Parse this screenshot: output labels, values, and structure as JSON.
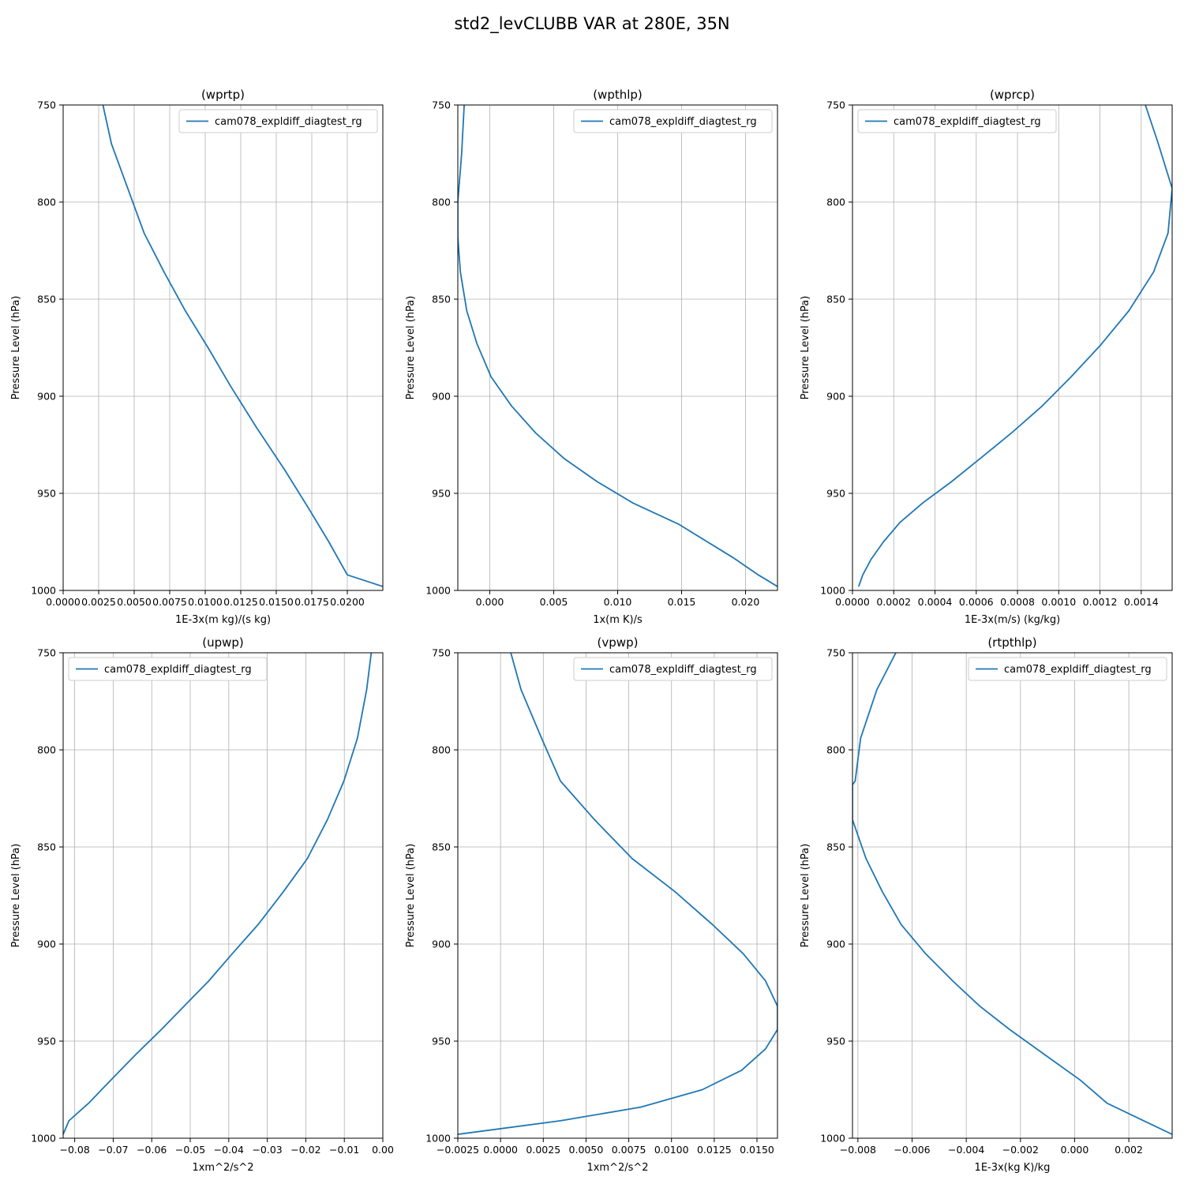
{
  "figure": {
    "title": "std2_levCLUBB VAR at 280E, 35N",
    "series_color": "#1f77b4"
  },
  "chart_data": [
    {
      "type": "line",
      "title": "(wprtp)",
      "xlabel": "1E-3x(m kg)/(s kg)",
      "ylabel": "Pressure Level (hPa)",
      "xlim": [
        0.0,
        0.0225
      ],
      "ylim": [
        1000,
        750
      ],
      "y_inverted": true,
      "grid": true,
      "legend_position": "upper-right",
      "xticks": [
        "0.0000",
        "0.0025",
        "0.0050",
        "0.0075",
        "0.0100",
        "0.0125",
        "0.0150",
        "0.0175",
        "0.0200"
      ],
      "xtick_values": [
        0.0,
        0.0025,
        0.005,
        0.0075,
        0.01,
        0.0125,
        0.015,
        0.0175,
        0.02
      ],
      "yticks": [
        "750",
        "800",
        "850",
        "900",
        "950",
        "1000"
      ],
      "ytick_values": [
        750,
        800,
        850,
        900,
        950,
        1000
      ],
      "series": [
        {
          "name": "cam078_expldiff_diagtest_rg",
          "x": [
            0.0028,
            0.0034,
            0.0046,
            0.0057,
            0.0071,
            0.0086,
            0.0102,
            0.0118,
            0.0136,
            0.0156,
            0.0173,
            0.0187,
            0.02,
            0.0225
          ],
          "y": [
            750,
            770,
            794,
            816,
            836,
            856,
            875,
            895,
            916,
            938,
            958,
            975,
            992,
            998
          ]
        }
      ]
    },
    {
      "type": "line",
      "title": "(wpthlp)",
      "xlabel": "1x(m K)/s",
      "ylabel": "Pressure Level (hPa)",
      "xlim": [
        -0.0025,
        0.0225
      ],
      "ylim": [
        1000,
        750
      ],
      "y_inverted": true,
      "grid": true,
      "legend_position": "upper-right",
      "xticks": [
        "0.000",
        "0.005",
        "0.010",
        "0.015",
        "0.020"
      ],
      "xtick_values": [
        0.0,
        0.005,
        0.01,
        0.015,
        0.02
      ],
      "yticks": [
        "750",
        "800",
        "850",
        "900",
        "950",
        "1000"
      ],
      "ytick_values": [
        750,
        800,
        850,
        900,
        950,
        1000
      ],
      "series": [
        {
          "name": "cam078_expldiff_diagtest_rg",
          "x": [
            -0.002,
            -0.0022,
            -0.0025,
            -0.0025,
            -0.0023,
            -0.0018,
            -0.001,
            0.0001,
            0.0017,
            0.0036,
            0.0058,
            0.0084,
            0.0112,
            0.0148,
            0.019,
            0.021,
            0.0225
          ],
          "y": [
            750,
            775,
            800,
            818,
            836,
            856,
            873,
            890,
            905,
            919,
            932,
            944,
            955,
            966,
            983,
            992,
            998
          ]
        }
      ]
    },
    {
      "type": "line",
      "title": "(wprcp)",
      "xlabel": "1E-3x(m/s) (kg/kg)",
      "ylabel": "Pressure Level (hPa)",
      "xlim": [
        0.0,
        0.00155
      ],
      "ylim": [
        1000,
        750
      ],
      "y_inverted": true,
      "grid": true,
      "legend_position": "upper-left",
      "xticks": [
        "0.0000",
        "0.0002",
        "0.0004",
        "0.0006",
        "0.0008",
        "0.0010",
        "0.0012",
        "0.0014"
      ],
      "xtick_values": [
        0.0,
        0.0002,
        0.0004,
        0.0006,
        0.0008,
        0.001,
        0.0012,
        0.0014
      ],
      "yticks": [
        "750",
        "800",
        "850",
        "900",
        "950",
        "1000"
      ],
      "ytick_values": [
        750,
        800,
        850,
        900,
        950,
        1000
      ],
      "series": [
        {
          "name": "cam078_expldiff_diagtest_rg",
          "x": [
            0.00142,
            0.00148,
            0.00155,
            0.00153,
            0.00146,
            0.00134,
            0.0012,
            0.00106,
            0.00092,
            0.00077,
            0.00062,
            0.00048,
            0.00034,
            0.00023,
            0.00015,
            9e-05,
            5e-05,
            3e-05
          ],
          "y": [
            750,
            769,
            793,
            816,
            836,
            856,
            874,
            890,
            905,
            919,
            932,
            944,
            955,
            965,
            975,
            984,
            992,
            998
          ]
        }
      ]
    },
    {
      "type": "line",
      "title": "(upwp)",
      "xlabel": "1xm^2/s^2",
      "ylabel": "Pressure Level (hPa)",
      "xlim": [
        -0.083,
        0.0
      ],
      "ylim": [
        1000,
        750
      ],
      "y_inverted": true,
      "grid": true,
      "legend_position": "upper-left",
      "xticks": [
        "−0.08",
        "−0.07",
        "−0.06",
        "−0.05",
        "−0.04",
        "−0.03",
        "−0.02",
        "−0.01",
        "0.00"
      ],
      "xtick_values": [
        -0.08,
        -0.07,
        -0.06,
        -0.05,
        -0.04,
        -0.03,
        -0.02,
        -0.01,
        0.0
      ],
      "yticks": [
        "750",
        "800",
        "850",
        "900",
        "950",
        "1000"
      ],
      "ytick_values": [
        750,
        800,
        850,
        900,
        950,
        1000
      ],
      "series": [
        {
          "name": "cam078_expldiff_diagtest_rg",
          "x": [
            -0.003,
            -0.0042,
            -0.0066,
            -0.0101,
            -0.0144,
            -0.0196,
            -0.0258,
            -0.0324,
            -0.0391,
            -0.0452,
            -0.0516,
            -0.058,
            -0.0642,
            -0.0701,
            -0.0764,
            -0.0815,
            -0.083
          ],
          "y": [
            750,
            769,
            794,
            816,
            836,
            856,
            873,
            890,
            905,
            919,
            932,
            945,
            957,
            969,
            982,
            991,
            998
          ]
        }
      ]
    },
    {
      "type": "line",
      "title": "(vpwp)",
      "xlabel": "1xm^2/s^2",
      "ylabel": "Pressure Level (hPa)",
      "xlim": [
        -0.0025,
        0.0162
      ],
      "ylim": [
        1000,
        750
      ],
      "y_inverted": true,
      "grid": true,
      "legend_position": "upper-right",
      "xticks": [
        "−0.0025",
        "0.0000",
        "0.0025",
        "0.0050",
        "0.0075",
        "0.0100",
        "0.0125",
        "0.0150"
      ],
      "xtick_values": [
        -0.0025,
        0.0,
        0.0025,
        0.005,
        0.0075,
        0.01,
        0.0125,
        0.015
      ],
      "yticks": [
        "750",
        "800",
        "850",
        "900",
        "950",
        "1000"
      ],
      "ytick_values": [
        750,
        800,
        850,
        900,
        950,
        1000
      ],
      "series": [
        {
          "name": "cam078_expldiff_diagtest_rg",
          "x": [
            0.0006,
            0.0012,
            0.0024,
            0.0035,
            0.0055,
            0.0077,
            0.0102,
            0.0124,
            0.0142,
            0.0155,
            0.0162,
            0.0162,
            0.0155,
            0.0141,
            0.0118,
            0.0082,
            0.0035,
            -0.0025
          ],
          "y": [
            750,
            769,
            794,
            816,
            836,
            856,
            873,
            890,
            905,
            919,
            932,
            944,
            954,
            965,
            975,
            984,
            991,
            998
          ]
        }
      ]
    },
    {
      "type": "line",
      "title": "(rtpthlp)",
      "xlabel": "1E-3x(kg K)/kg",
      "ylabel": "Pressure Level (hPa)",
      "xlim": [
        -0.0082,
        0.0036
      ],
      "ylim": [
        1000,
        750
      ],
      "y_inverted": true,
      "grid": true,
      "legend_position": "upper-right",
      "xticks": [
        "−0.008",
        "−0.006",
        "−0.004",
        "−0.002",
        "0.000",
        "0.002"
      ],
      "xtick_values": [
        -0.008,
        -0.006,
        -0.004,
        -0.002,
        0.0,
        0.002
      ],
      "yticks": [
        "750",
        "800",
        "850",
        "900",
        "950",
        "1000"
      ],
      "ytick_values": [
        750,
        800,
        850,
        900,
        950,
        1000
      ],
      "series": [
        {
          "name": "cam078_expldiff_diagtest_rg",
          "x": [
            -0.0066,
            -0.0073,
            -0.0079,
            -0.0081,
            -0.0082,
            -0.0082,
            -0.0077,
            -0.0071,
            -0.0064,
            -0.0055,
            -0.0045,
            -0.0035,
            -0.0024,
            -0.0011,
            0.0002,
            0.0012,
            0.0024,
            0.0036
          ],
          "y": [
            750,
            769,
            794,
            816,
            818,
            836,
            856,
            873,
            890,
            905,
            919,
            932,
            944,
            957,
            970,
            982,
            990,
            998
          ]
        }
      ]
    }
  ]
}
